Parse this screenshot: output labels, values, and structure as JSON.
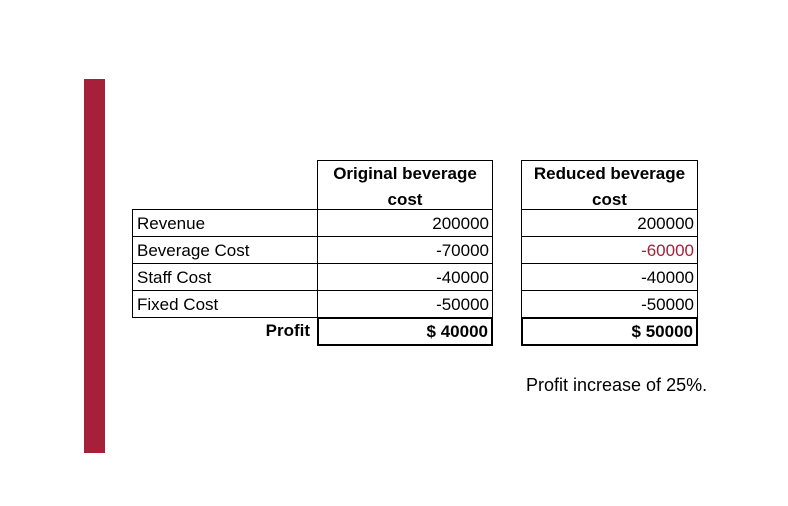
{
  "colors": {
    "accent_bar": "#A6203A",
    "highlight_value": "#A6203A"
  },
  "table": {
    "headers": {
      "original": "Original beverage cost",
      "reduced": "Reduced beverage cost"
    },
    "rows": [
      {
        "label": "Revenue",
        "original": "200000",
        "reduced": "200000"
      },
      {
        "label": "Beverage Cost",
        "original": "-70000",
        "reduced": "-60000"
      },
      {
        "label": "Staff Cost",
        "original": "-40000",
        "reduced": "-40000"
      },
      {
        "label": "Fixed Cost",
        "original": "-50000",
        "reduced": "-50000"
      }
    ],
    "profit": {
      "label": "Profit",
      "original": "$ 40000",
      "reduced": "$ 50000"
    }
  },
  "note": "Profit increase of 25%."
}
